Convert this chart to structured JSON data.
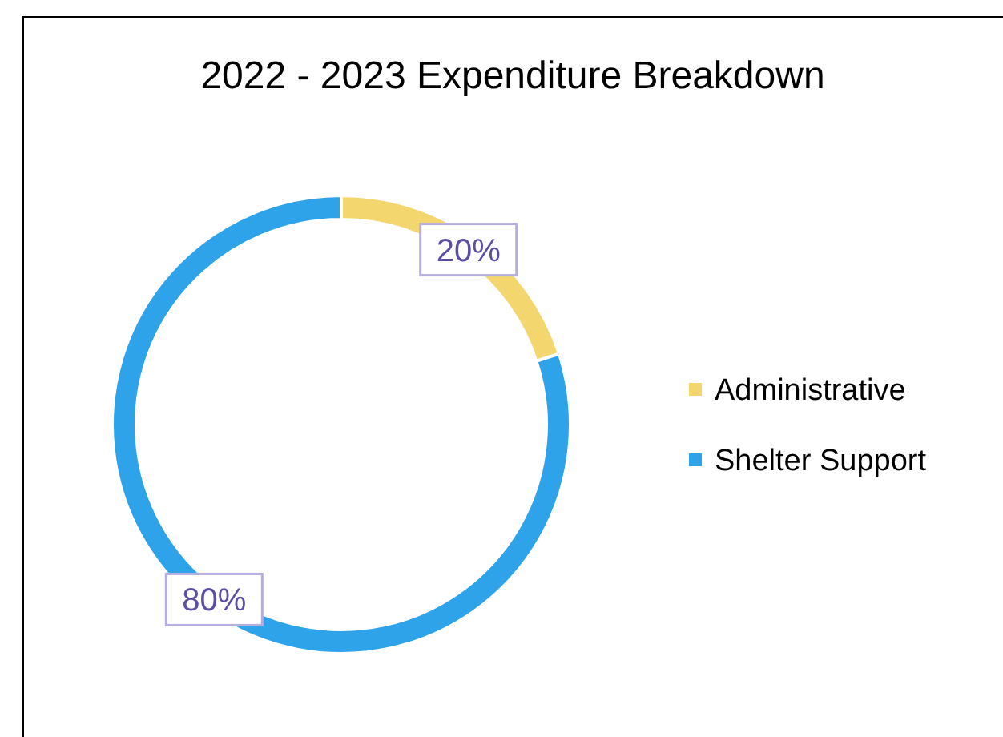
{
  "chart_data": {
    "type": "donut",
    "title": "2022 - 2023 Expenditure Breakdown",
    "categories": [
      "Administrative",
      "Shelter Support"
    ],
    "values": [
      20,
      80
    ],
    "colors": [
      "#f3d66d",
      "#2ea3ea"
    ],
    "value_labels": [
      "20%",
      "80%"
    ],
    "legend": "right"
  }
}
